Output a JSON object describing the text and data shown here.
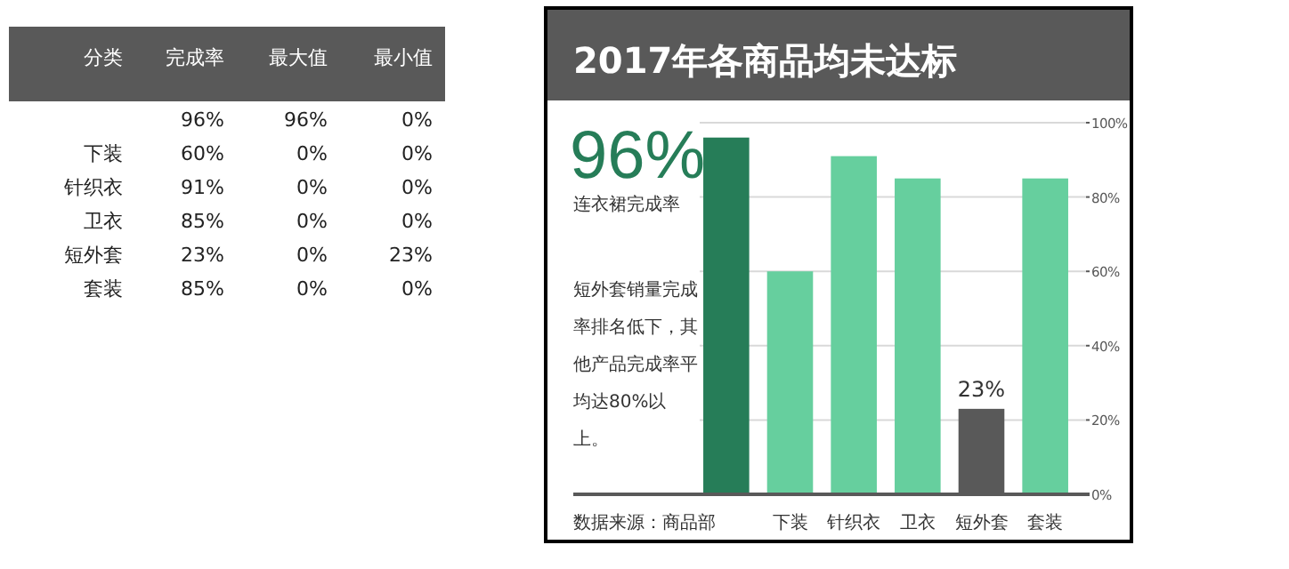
{
  "chart_data": [
    {
      "type": "other",
      "categories": [
        "分类",
        "完成率",
        "最大值",
        "最小值"
      ],
      "y_categories": [
        null,
        "下装",
        "针织衣",
        "卫衣",
        "短外套",
        "套装"
      ],
      "annotations": [
        "96%",
        "96%",
        "0%",
        "60%",
        "0%",
        "0%",
        "91%",
        "0%",
        "0%",
        "85%",
        "0%",
        "0%",
        "23%",
        "0%",
        "23%",
        "85%",
        "0%",
        "0%"
      ]
    },
    {
      "type": "bar",
      "title": "2017年各商品均未达标",
      "categories": [
        null,
        "下装",
        "针织衣",
        "卫衣",
        "短外套",
        "套装"
      ],
      "values": [
        96,
        60,
        91,
        85,
        23,
        85
      ],
      "colors": [
        "#267d58",
        "#66cf9e",
        "#66cf9e",
        "#66cf9e",
        "#595959",
        "#66cf9e"
      ],
      "value_labels": [
        null,
        null,
        null,
        null,
        "23%",
        null
      ],
      "ylim": [
        0,
        100
      ],
      "yticks": [
        {
          "value": 0,
          "label": "0%"
        },
        {
          "value": 20,
          "label": "20%"
        },
        {
          "value": 40,
          "label": "40%"
        },
        {
          "value": 60,
          "label": "60%"
        },
        {
          "value": 80,
          "label": "80%"
        },
        {
          "value": 100,
          "label": "100%"
        }
      ],
      "grid": "y",
      "annotations": [
        "96%",
        "连衣裙完成率",
        "短外套销量完成率排名低下，其他产品完成率平均达80%以上。",
        "数据来源：商品部"
      ]
    }
  ]
}
